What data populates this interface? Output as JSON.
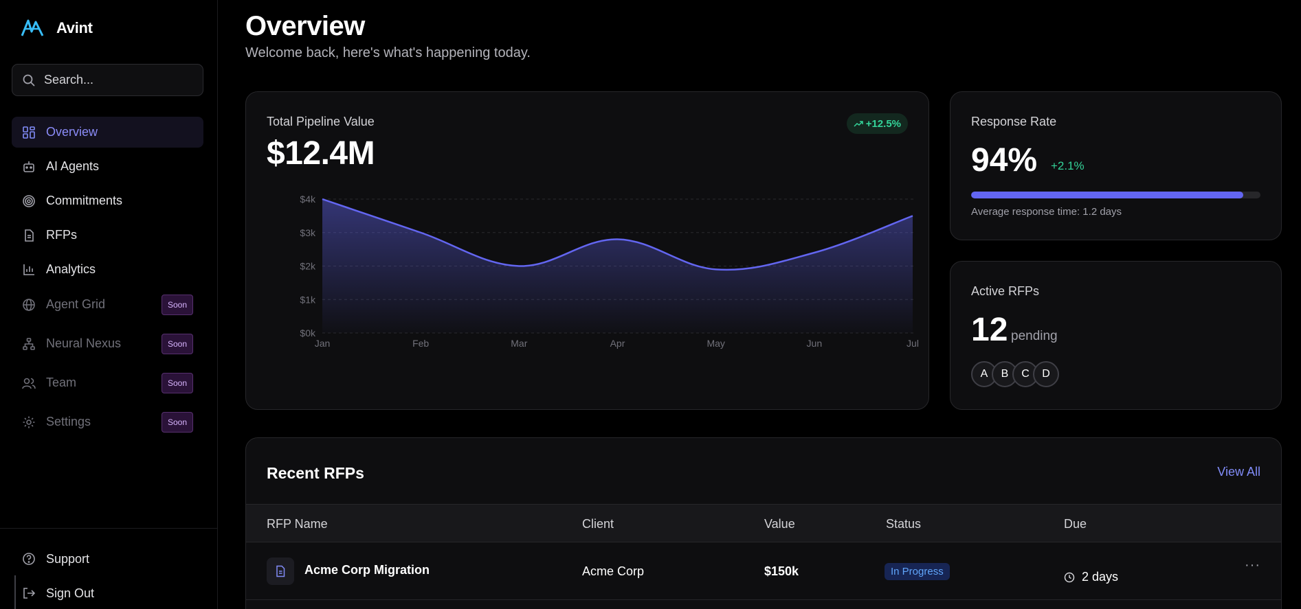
{
  "app": {
    "name": "Avint"
  },
  "search": {
    "placeholder": "Search..."
  },
  "sidebar": {
    "items": [
      {
        "label": "Overview",
        "icon": "grid-icon",
        "active": true
      },
      {
        "label": "AI Agents",
        "icon": "bot-icon"
      },
      {
        "label": "Commitments",
        "icon": "target-icon"
      },
      {
        "label": "RFPs",
        "icon": "file-text-icon"
      },
      {
        "label": "Analytics",
        "icon": "bar-chart-icon"
      },
      {
        "label": "Agent Grid",
        "icon": "globe-icon",
        "badge": "Soon"
      },
      {
        "label": "Neural Nexus",
        "icon": "network-icon",
        "badge": "Soon"
      },
      {
        "label": "Team",
        "icon": "users-icon",
        "badge": "Soon"
      },
      {
        "label": "Settings",
        "icon": "gear-icon",
        "badge": "Soon"
      }
    ],
    "bottom": [
      {
        "label": "Support",
        "icon": "help-circle-icon"
      },
      {
        "label": "Sign Out",
        "icon": "log-out-icon"
      }
    ]
  },
  "header": {
    "title": "Overview",
    "subtitle": "Welcome back, here's what's happening today."
  },
  "pipeline": {
    "label": "Total Pipeline Value",
    "value": "$12.4M",
    "change": "+12.5%"
  },
  "chart_data": {
    "type": "area",
    "categories": [
      "Jan",
      "Feb",
      "Mar",
      "Apr",
      "May",
      "Jun",
      "Jul"
    ],
    "values": [
      4000,
      3000,
      2000,
      2800,
      1900,
      2400,
      3500
    ],
    "ylim": [
      0,
      4000
    ],
    "yticks": [
      "$0k",
      "$1k",
      "$2k",
      "$3k",
      "$4k"
    ],
    "grid": true,
    "color": "#6366f1"
  },
  "response_rate": {
    "label": "Response Rate",
    "value": "94%",
    "change": "+2.1%",
    "progress": 0.94,
    "note": "Average response time: 1.2 days"
  },
  "active_rfps": {
    "label": "Active RFPs",
    "value": "12",
    "suffix": "pending",
    "avatars": [
      "A",
      "B",
      "C",
      "D"
    ]
  },
  "recent": {
    "title": "Recent RFPs",
    "view_all": "View All",
    "columns": [
      "RFP Name",
      "Client",
      "Value",
      "Status",
      "Due"
    ],
    "rows": [
      {
        "name": "Acme Corp Migration",
        "client": "Acme Corp",
        "value": "$150k",
        "status": "In Progress",
        "due": "2 days"
      }
    ]
  }
}
